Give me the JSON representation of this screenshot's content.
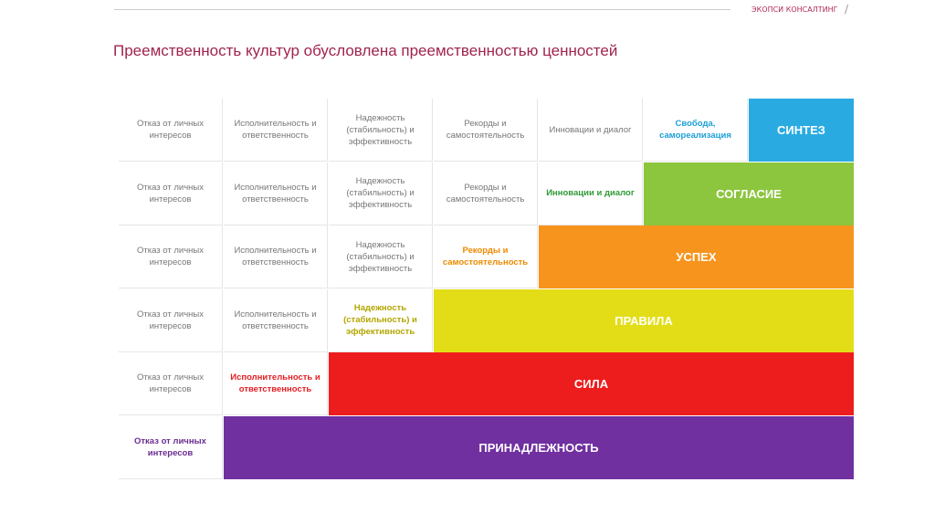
{
  "header": {
    "brand": "ЭКОПСИ КОНСАЛТИНГ",
    "separator": "/"
  },
  "title": "Преемственность культур обусловлена преемственностью ценностей",
  "columns": [
    "Отказ от личных интересов",
    "Исполнительность и ответственность",
    "Надежность (стабильность) и эффективность",
    "Рекорды и самостоятельность",
    "Инновации и диалог",
    "Свобода, самореализация"
  ],
  "rows": [
    {
      "band": "СИНТЕЗ",
      "color": "#29abe2",
      "text_color": "#1a9fd6"
    },
    {
      "band": "СОГЛАСИЕ",
      "color": "#8cc63f",
      "text_color": "#2f9a35"
    },
    {
      "band": "УСПЕХ",
      "color": "#f7941d",
      "text_color": "#ee8a00"
    },
    {
      "band": "ПРАВИЛА",
      "color": "#e3dd17",
      "text_color": "#b3a600"
    },
    {
      "band": "СИЛА",
      "color": "#ee1d1d",
      "text_color": "#e31e24"
    },
    {
      "band": "ПРИНАДЛЕЖНОСТЬ",
      "color": "#7030a0",
      "text_color": "#6a2c91"
    }
  ]
}
